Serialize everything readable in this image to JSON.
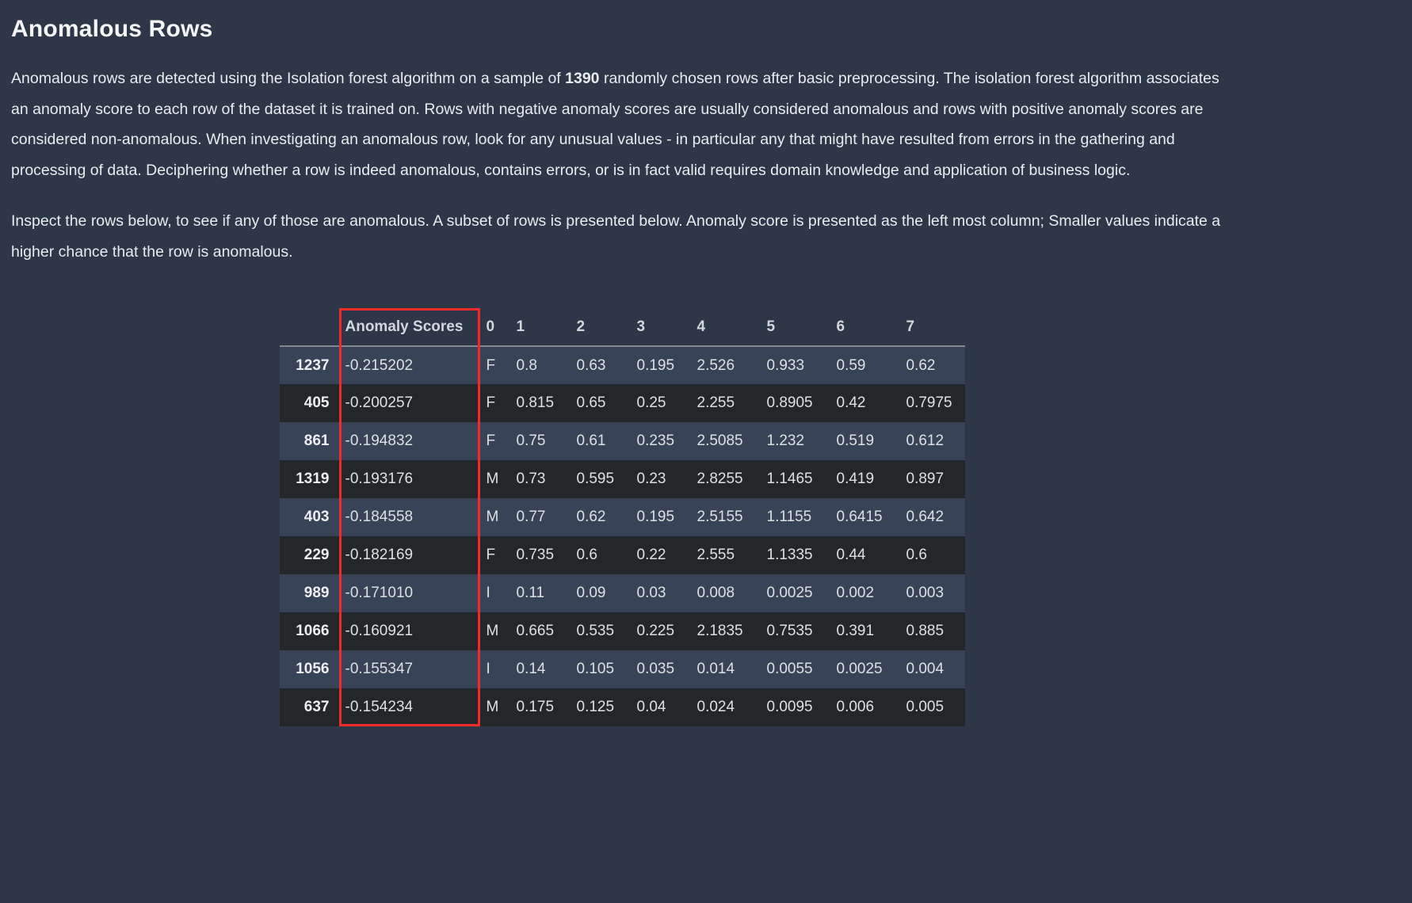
{
  "page": {
    "title": "Anomalous Rows",
    "intro": {
      "before_bold": "Anomalous rows are detected using the Isolation forest algorithm on a sample of ",
      "bold_value": "1390",
      "after_bold": " randomly chosen rows after basic preprocessing. The isolation forest algorithm associates an anomaly score to each row of the dataset it is trained on. Rows with negative anomaly scores are usually considered anomalous and rows with positive anomaly scores are considered non-anomalous. When investigating an anomalous row, look for any unusual values - in particular any that might have resulted from errors in the gathering and processing of data. Deciphering whether a row is indeed anomalous, contains errors, or is in fact valid requires domain knowledge and application of business logic."
    },
    "instruction": "Inspect the rows below, to see if any of those are anomalous. A subset of rows is presented below. Anomaly score is presented as the left most column; Smaller values indicate a higher chance that the row is anomalous."
  },
  "table": {
    "columns": [
      "Anomaly Scores",
      "0",
      "1",
      "2",
      "3",
      "4",
      "5",
      "6",
      "7"
    ],
    "rows": [
      {
        "index": "1237",
        "cells": [
          "-0.215202",
          "F",
          "0.8",
          "0.63",
          "0.195",
          "2.526",
          "0.933",
          "0.59",
          "0.62"
        ]
      },
      {
        "index": "405",
        "cells": [
          "-0.200257",
          "F",
          "0.815",
          "0.65",
          "0.25",
          "2.255",
          "0.8905",
          "0.42",
          "0.7975"
        ]
      },
      {
        "index": "861",
        "cells": [
          "-0.194832",
          "F",
          "0.75",
          "0.61",
          "0.235",
          "2.5085",
          "1.232",
          "0.519",
          "0.612"
        ]
      },
      {
        "index": "1319",
        "cells": [
          "-0.193176",
          "M",
          "0.73",
          "0.595",
          "0.23",
          "2.8255",
          "1.1465",
          "0.419",
          "0.897"
        ]
      },
      {
        "index": "403",
        "cells": [
          "-0.184558",
          "M",
          "0.77",
          "0.62",
          "0.195",
          "2.5155",
          "1.1155",
          "0.6415",
          "0.642"
        ]
      },
      {
        "index": "229",
        "cells": [
          "-0.182169",
          "F",
          "0.735",
          "0.6",
          "0.22",
          "2.555",
          "1.1335",
          "0.44",
          "0.6"
        ]
      },
      {
        "index": "989",
        "cells": [
          "-0.171010",
          "I",
          "0.11",
          "0.09",
          "0.03",
          "0.008",
          "0.0025",
          "0.002",
          "0.003"
        ]
      },
      {
        "index": "1066",
        "cells": [
          "-0.160921",
          "M",
          "0.665",
          "0.535",
          "0.225",
          "2.1835",
          "0.7535",
          "0.391",
          "0.885"
        ]
      },
      {
        "index": "1056",
        "cells": [
          "-0.155347",
          "I",
          "0.14",
          "0.105",
          "0.035",
          "0.014",
          "0.0055",
          "0.0025",
          "0.004"
        ]
      },
      {
        "index": "637",
        "cells": [
          "-0.154234",
          "M",
          "0.175",
          "0.125",
          "0.04",
          "0.024",
          "0.0095",
          "0.006",
          "0.005"
        ]
      }
    ]
  },
  "colors": {
    "background": "#2d3747",
    "row_light": "#384357",
    "row_dark": "#24262a",
    "highlight_red": "#ef2a2a",
    "header_divider": "#84878b"
  }
}
